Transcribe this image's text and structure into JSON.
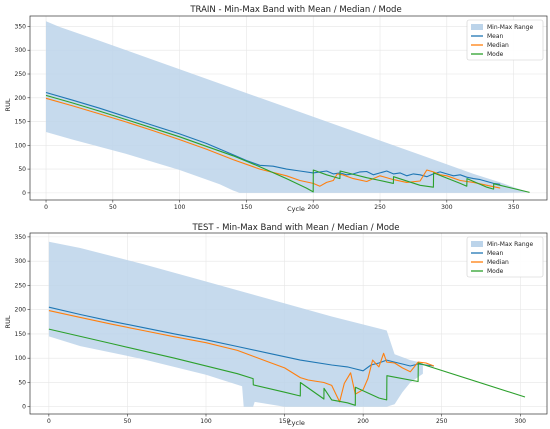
{
  "chart_data": [
    {
      "type": "line",
      "title": "TRAIN - Min-Max Band with Mean / Median / Mode",
      "xlabel": "Cycle",
      "ylabel": "RUL",
      "xlim": [
        -12,
        375
      ],
      "ylim": [
        -15,
        372
      ],
      "xticks": [
        0,
        50,
        100,
        150,
        200,
        250,
        300,
        350
      ],
      "yticks": [
        0,
        50,
        100,
        150,
        200,
        250,
        300,
        350
      ],
      "grid": true,
      "legend": "top-right",
      "band": {
        "name": "Min-Max Range",
        "color": "#bcd4ea",
        "upper": {
          "x": [
            0,
            10,
            40,
            80,
            120,
            160,
            200,
            240,
            280,
            320,
            340,
            350,
            362
          ],
          "y": [
            361,
            349,
            320,
            280,
            240,
            200,
            160,
            120,
            80,
            40,
            22,
            12,
            1
          ]
        },
        "lower": {
          "x": [
            0,
            20,
            60,
            100,
            130,
            140,
            145,
            150,
            165,
            180,
            200,
            215,
            230,
            240,
            250,
            260,
            275,
            290,
            300,
            315,
            330,
            340
          ],
          "y": [
            128,
            112,
            82,
            48,
            18,
            5,
            0,
            0,
            0,
            0,
            0,
            0,
            0,
            0,
            0,
            0,
            0,
            0,
            0,
            0,
            0,
            0
          ]
        }
      },
      "series": [
        {
          "name": "Mean",
          "color": "#1f77b4",
          "x": [
            0,
            20,
            40,
            60,
            80,
            100,
            120,
            140,
            150,
            160,
            170,
            180,
            190,
            200,
            210,
            215,
            220,
            225,
            230,
            235,
            240,
            245,
            250,
            255,
            260,
            265,
            270,
            275,
            280,
            285,
            290,
            295,
            300,
            305,
            310,
            315,
            320,
            325,
            330,
            335,
            340
          ],
          "y": [
            211,
            195,
            178,
            160,
            142,
            124,
            104,
            80,
            68,
            58,
            56,
            50,
            46,
            42,
            46,
            40,
            42,
            38,
            40,
            44,
            45,
            38,
            42,
            46,
            40,
            42,
            36,
            40,
            38,
            34,
            40,
            44,
            40,
            36,
            38,
            33,
            30,
            28,
            24,
            20,
            18
          ]
        },
        {
          "name": "Median",
          "color": "#ff7f0e",
          "x": [
            0,
            20,
            40,
            60,
            80,
            100,
            120,
            140,
            160,
            180,
            190,
            200,
            205,
            210,
            215,
            218,
            222,
            230,
            240,
            250,
            260,
            270,
            280,
            285,
            290,
            295,
            300,
            310,
            320,
            330,
            340
          ],
          "y": [
            199,
            183,
            166,
            149,
            131,
            112,
            92,
            70,
            50,
            36,
            26,
            20,
            14,
            22,
            26,
            40,
            38,
            30,
            24,
            36,
            28,
            22,
            25,
            48,
            44,
            38,
            36,
            26,
            22,
            16,
            10
          ]
        },
        {
          "name": "Mode",
          "color": "#2ca02c",
          "x": [
            0,
            20,
            40,
            60,
            80,
            100,
            120,
            140,
            160,
            180,
            195,
            200,
            200.1,
            210,
            220,
            220.1,
            240,
            250,
            260,
            260.1,
            280,
            290,
            290.1,
            310,
            315,
            315.1,
            330,
            335,
            335.1,
            362
          ],
          "y": [
            205,
            189,
            172,
            154,
            136,
            118,
            98,
            78,
            55,
            30,
            10,
            2,
            48,
            38,
            30,
            46,
            32,
            26,
            20,
            34,
            16,
            12,
            42,
            20,
            14,
            30,
            12,
            8,
            19,
            1
          ]
        }
      ]
    },
    {
      "type": "line",
      "title": "TEST - Min-Max Band with Mean / Median / Mode",
      "xlabel": "Cycle",
      "ylabel": "RUL",
      "xlim": [
        -12,
        317
      ],
      "ylim": [
        -15,
        358
      ],
      "xticks": [
        0,
        50,
        100,
        150,
        200,
        250,
        300
      ],
      "yticks": [
        0,
        50,
        100,
        150,
        200,
        250,
        300,
        350
      ],
      "grid": true,
      "legend": "top-right",
      "band": {
        "name": "Min-Max Range",
        "color": "#bcd4ea",
        "upper": {
          "x": [
            0,
            20,
            60,
            100,
            140,
            180,
            215,
            220,
            230,
            238
          ],
          "y": [
            340,
            327,
            294,
            258,
            222,
            186,
            157,
            108,
            96,
            90
          ]
        },
        "lower": {
          "x": [
            0,
            20,
            60,
            100,
            123,
            124,
            130,
            131,
            150,
            160,
            170,
            180,
            190,
            195,
            196,
            205,
            210,
            215,
            220,
            225,
            230,
            238
          ],
          "y": [
            145,
            125,
            98,
            66,
            42,
            0,
            0,
            10,
            0,
            0,
            0,
            0,
            0,
            0,
            0,
            0,
            0,
            0,
            5,
            30,
            50,
            68
          ]
        }
      },
      "series": [
        {
          "name": "Mean",
          "color": "#1f77b4",
          "x": [
            0,
            20,
            40,
            60,
            80,
            100,
            120,
            140,
            160,
            180,
            190,
            195,
            200,
            205,
            210,
            215,
            220,
            225,
            230,
            235,
            240,
            245
          ],
          "y": [
            205,
            190,
            176,
            163,
            150,
            138,
            124,
            110,
            96,
            86,
            82,
            78,
            74,
            86,
            90,
            96,
            92,
            88,
            84,
            88,
            86,
            84
          ]
        },
        {
          "name": "Median",
          "color": "#ff7f0e",
          "x": [
            0,
            20,
            40,
            60,
            80,
            100,
            120,
            140,
            150,
            160,
            165,
            175,
            180,
            185,
            188,
            192,
            195,
            200,
            203,
            206,
            210,
            213,
            215,
            220,
            225,
            230,
            235,
            240,
            245
          ],
          "y": [
            198,
            184,
            170,
            157,
            144,
            132,
            116,
            92,
            80,
            60,
            55,
            50,
            44,
            10,
            48,
            70,
            26,
            35,
            58,
            96,
            82,
            110,
            92,
            90,
            80,
            72,
            92,
            90,
            84
          ]
        },
        {
          "name": "Mode",
          "color": "#2ca02c",
          "x": [
            0,
            40,
            80,
            120,
            130,
            130.1,
            150,
            160,
            160.1,
            175,
            175.1,
            180,
            190,
            195,
            195.1,
            210,
            215,
            215.1,
            235,
            235.1,
            303
          ],
          "y": [
            160,
            130,
            100,
            68,
            58,
            45,
            30,
            22,
            50,
            16,
            38,
            14,
            8,
            3,
            40,
            18,
            14,
            64,
            52,
            90,
            20
          ]
        }
      ]
    }
  ]
}
